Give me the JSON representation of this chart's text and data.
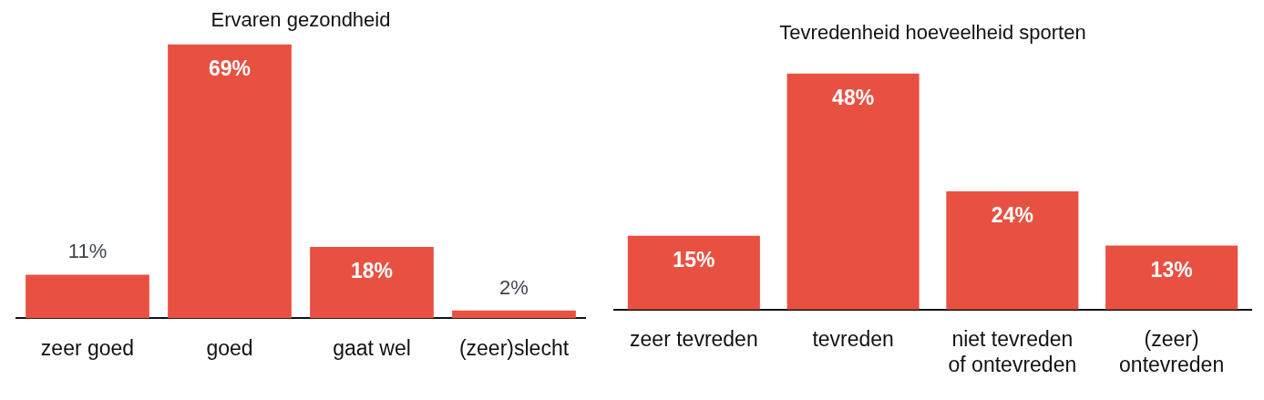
{
  "chart_data": [
    {
      "type": "bar",
      "title": "Ervaren gezondheid",
      "categories": [
        "zeer goed",
        "goed",
        "gaat wel",
        "(zeer)slecht"
      ],
      "values": [
        11,
        69,
        18,
        2
      ],
      "value_labels": [
        "11%",
        "69%",
        "18%",
        "2%"
      ],
      "color": "#e85141",
      "grid": false,
      "legend": false,
      "tick_labels": "x"
    },
    {
      "type": "bar",
      "title": "Tevredenheid hoeveelheid sporten",
      "categories": [
        "zeer tevreden",
        "tevreden",
        "niet tevreden of ontevreden",
        "(zeer) ontevreden"
      ],
      "values": [
        15,
        48,
        24,
        13
      ],
      "value_labels": [
        "15%",
        "48%",
        "24%",
        "13%"
      ],
      "color": "#e85141",
      "grid": false,
      "legend": false,
      "tick_labels": "x"
    }
  ]
}
